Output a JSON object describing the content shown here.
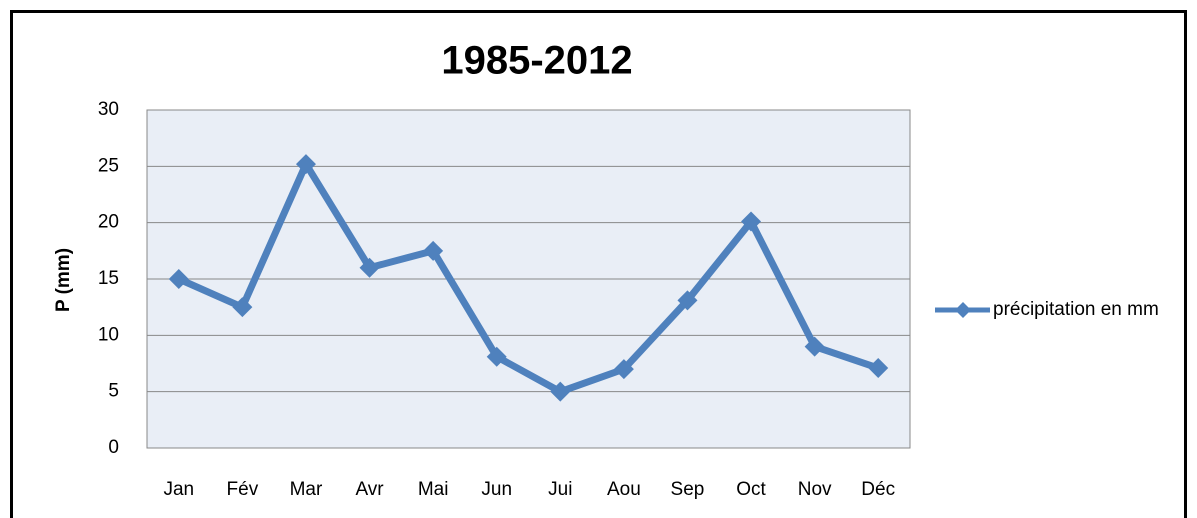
{
  "chart_data": {
    "type": "line",
    "title": "1985-2012",
    "y_label": "P (mm)",
    "categories": [
      "Jan",
      "Fév",
      "Mar",
      "Avr",
      "Mai",
      "Jun",
      "Jui",
      "Aou",
      "Sep",
      "Oct",
      "Nov",
      "Déc"
    ],
    "series": [
      {
        "name": "précipitation en mm",
        "color": "#4f81bd",
        "values": [
          15,
          12.5,
          25.2,
          16,
          17.5,
          8.1,
          5,
          7,
          13.1,
          20.1,
          9,
          7.1
        ]
      }
    ],
    "ylim": [
      0,
      30
    ],
    "yticks": [
      0,
      5,
      10,
      15,
      20,
      25,
      30
    ],
    "grid": true,
    "legend": "right"
  }
}
